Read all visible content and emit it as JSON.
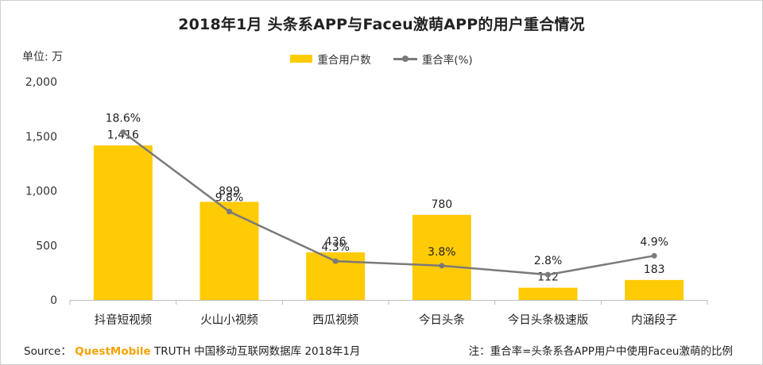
{
  "chart_data": {
    "type": "bar",
    "title": "2018年1月 头条系APP与Faceu激萌APP的用户重合情况",
    "unit_label": "单位: 万",
    "categories": [
      "抖音短视频",
      "火山小视频",
      "西瓜视频",
      "今日头条",
      "今日头条极速版",
      "内涵段子"
    ],
    "y_ticks": [
      "0",
      "500",
      "1,000",
      "1,500",
      "2,000"
    ],
    "ylim": [
      0,
      2000
    ],
    "series": [
      {
        "name": "重合用户数",
        "kind": "bar",
        "values": [
          1416,
          899,
          436,
          780,
          112,
          183
        ],
        "labels": [
          "1,416",
          "899",
          "436",
          "780",
          "112",
          "183"
        ],
        "color": "#FFCB05"
      },
      {
        "name": "重合率(%)",
        "kind": "line",
        "values": [
          18.6,
          9.8,
          4.3,
          3.8,
          2.8,
          4.9
        ],
        "labels": [
          "18.6%",
          "9.8%",
          "4.3%",
          "3.8%",
          "2.8%",
          "4.9%"
        ],
        "color": "#7a7a7a"
      }
    ],
    "legend": [
      "重合用户数",
      "重合率(%)"
    ]
  },
  "footer": {
    "source_prefix": "Source：",
    "brand": "QuestMobile",
    "source_rest": "TRUTH 中国移动互联网数据库 2018年1月",
    "note": "注：重合率=头条系各APP用户中使用Faceu激萌的比例"
  }
}
